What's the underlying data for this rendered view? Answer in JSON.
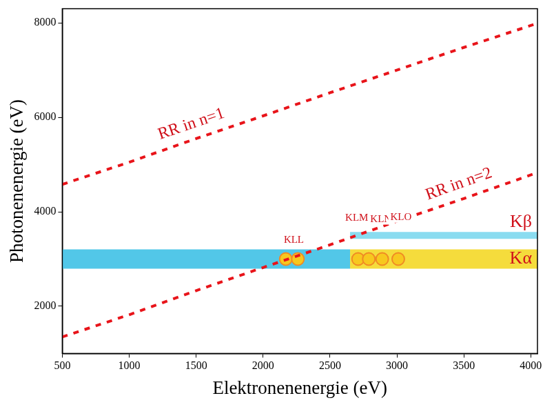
{
  "chart_data": {
    "type": "scatter",
    "x_label": "Elektronenenergie (eV)",
    "y_label": "Photonenenergie (eV)",
    "xlim": [
      500,
      4050
    ],
    "xticks": [
      500,
      1000,
      1500,
      2000,
      2500,
      3000,
      3500,
      4000
    ],
    "ylim": [
      1000,
      8300
    ],
    "yticks": [
      2000,
      4000,
      6000,
      8000
    ],
    "grid": false,
    "series": [
      {
        "name": "RR in n=1",
        "type": "line",
        "line_style": "dashed",
        "color": "#e8141a",
        "x": [
          500,
          1000,
          1500,
          2000,
          2500,
          3000,
          3500,
          4050
        ],
        "values": [
          4580,
          5050,
          5550,
          6030,
          6520,
          7000,
          7480,
          7990
        ]
      },
      {
        "name": "RR in n=2",
        "type": "line",
        "line_style": "dashed",
        "color": "#e8141a",
        "x": [
          500,
          1000,
          1500,
          2000,
          2500,
          3000,
          3500,
          4050
        ],
        "values": [
          1350,
          1820,
          2330,
          2820,
          3300,
          3800,
          4280,
          4830
        ]
      },
      {
        "name": "Kα",
        "type": "line",
        "line_style": "solid",
        "colors": [
          "#52c7e8",
          "#52c7e8",
          "#52c7e8",
          "#f5dc3c",
          "#f5dc3c"
        ],
        "x": [
          500,
          2100,
          2350,
          2650,
          4050
        ],
        "values": [
          3000,
          3000,
          3000,
          3000,
          3000
        ]
      },
      {
        "name": "Kβ",
        "type": "line",
        "line_style": "solid",
        "color": "#8adcf0",
        "x": [
          2650,
          4050
        ],
        "values": [
          3500,
          3500
        ]
      },
      {
        "type": "scatter",
        "marker": "circle",
        "color": "#f7c81e",
        "x": [
          2170,
          2260,
          2710,
          2790,
          2890,
          3010
        ],
        "values": [
          3000,
          3000,
          3000,
          3000,
          3000,
          3000
        ]
      }
    ],
    "annotations": [
      {
        "text": "KLL",
        "x": 2230,
        "y": 3420
      },
      {
        "text": "KLM",
        "x": 2700,
        "y": 3880
      },
      {
        "text": "KLN",
        "x": 2880,
        "y": 3860
      },
      {
        "text": "KLO",
        "x": 3030,
        "y": 3900
      }
    ]
  }
}
